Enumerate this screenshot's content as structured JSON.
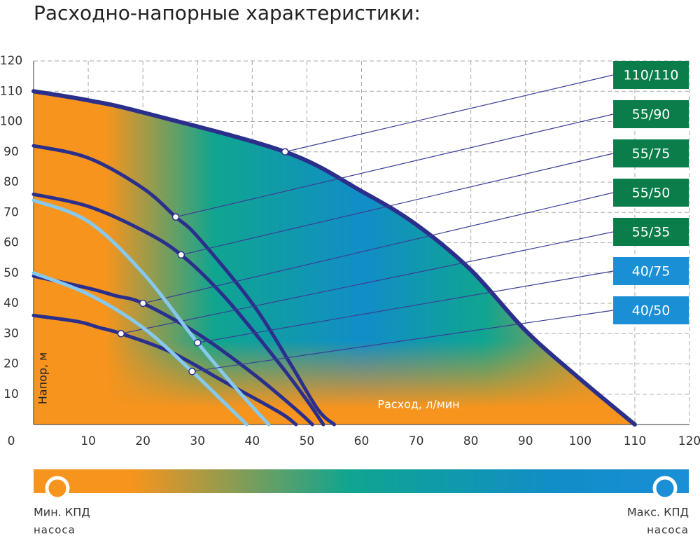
{
  "chart_data": {
    "type": "line",
    "title": "Расходно-напорные характеристики:",
    "xlabel": "Расход, л/мин",
    "ylabel": "Напор, м",
    "xlim": [
      0,
      120
    ],
    "ylim": [
      0,
      120
    ],
    "xticks": [
      0,
      10,
      20,
      30,
      40,
      50,
      60,
      70,
      80,
      90,
      100,
      110,
      120
    ],
    "yticks": [
      10,
      20,
      30,
      40,
      50,
      60,
      70,
      80,
      90,
      100,
      110,
      120
    ],
    "grid": true,
    "series": [
      {
        "name": "110/110",
        "color": "#2b2f8c",
        "label_color": "#0b7d4a",
        "x": [
          0,
          10,
          20,
          46,
          60,
          70,
          80,
          90,
          100,
          110
        ],
        "values": [
          110,
          107,
          103,
          90,
          77,
          66,
          51,
          31,
          15,
          0
        ]
      },
      {
        "name": "55/90",
        "color": "#2b2f8c",
        "label_color": "#0b7d4a",
        "x": [
          0,
          10,
          20,
          26,
          30,
          40,
          47,
          52,
          55
        ],
        "values": [
          92,
          88,
          78,
          68.5,
          62,
          40,
          20,
          5,
          0
        ]
      },
      {
        "name": "55/75",
        "color": "#2b2f8c",
        "label_color": "#0b7d4a",
        "x": [
          0,
          10,
          20,
          27,
          35,
          45,
          50,
          53
        ],
        "values": [
          76,
          72,
          64,
          56,
          42,
          20,
          8,
          0
        ]
      },
      {
        "name": "55/50",
        "color": "#2b2f8c",
        "label_color": "#0b7d4a",
        "x": [
          0,
          10,
          15,
          20,
          30,
          40,
          48,
          51
        ],
        "values": [
          49,
          45,
          42.5,
          40,
          30,
          17,
          5,
          0
        ]
      },
      {
        "name": "55/35",
        "color": "#2b2f8c",
        "label_color": "#0b7d4a",
        "x": [
          0,
          8,
          12,
          16,
          25,
          35,
          45,
          48
        ],
        "values": [
          36,
          34,
          32,
          30,
          24,
          14,
          4,
          0
        ]
      },
      {
        "name": "40/75",
        "color": "#86c8ee",
        "label_color": "#1a8fd6",
        "x": [
          0,
          10,
          20,
          30,
          37,
          43
        ],
        "values": [
          74,
          67,
          50,
          27,
          12,
          0
        ]
      },
      {
        "name": "40/50",
        "color": "#86c8ee",
        "label_color": "#1a8fd6",
        "x": [
          0,
          10,
          20,
          29,
          35,
          39
        ],
        "values": [
          50,
          43,
          32,
          17.5,
          7,
          0
        ]
      }
    ],
    "legend": {
      "min_label": "Мин. КПД",
      "min_sub": "насоса",
      "max_label": "Макс. КПД",
      "max_sub": "насоса"
    }
  }
}
